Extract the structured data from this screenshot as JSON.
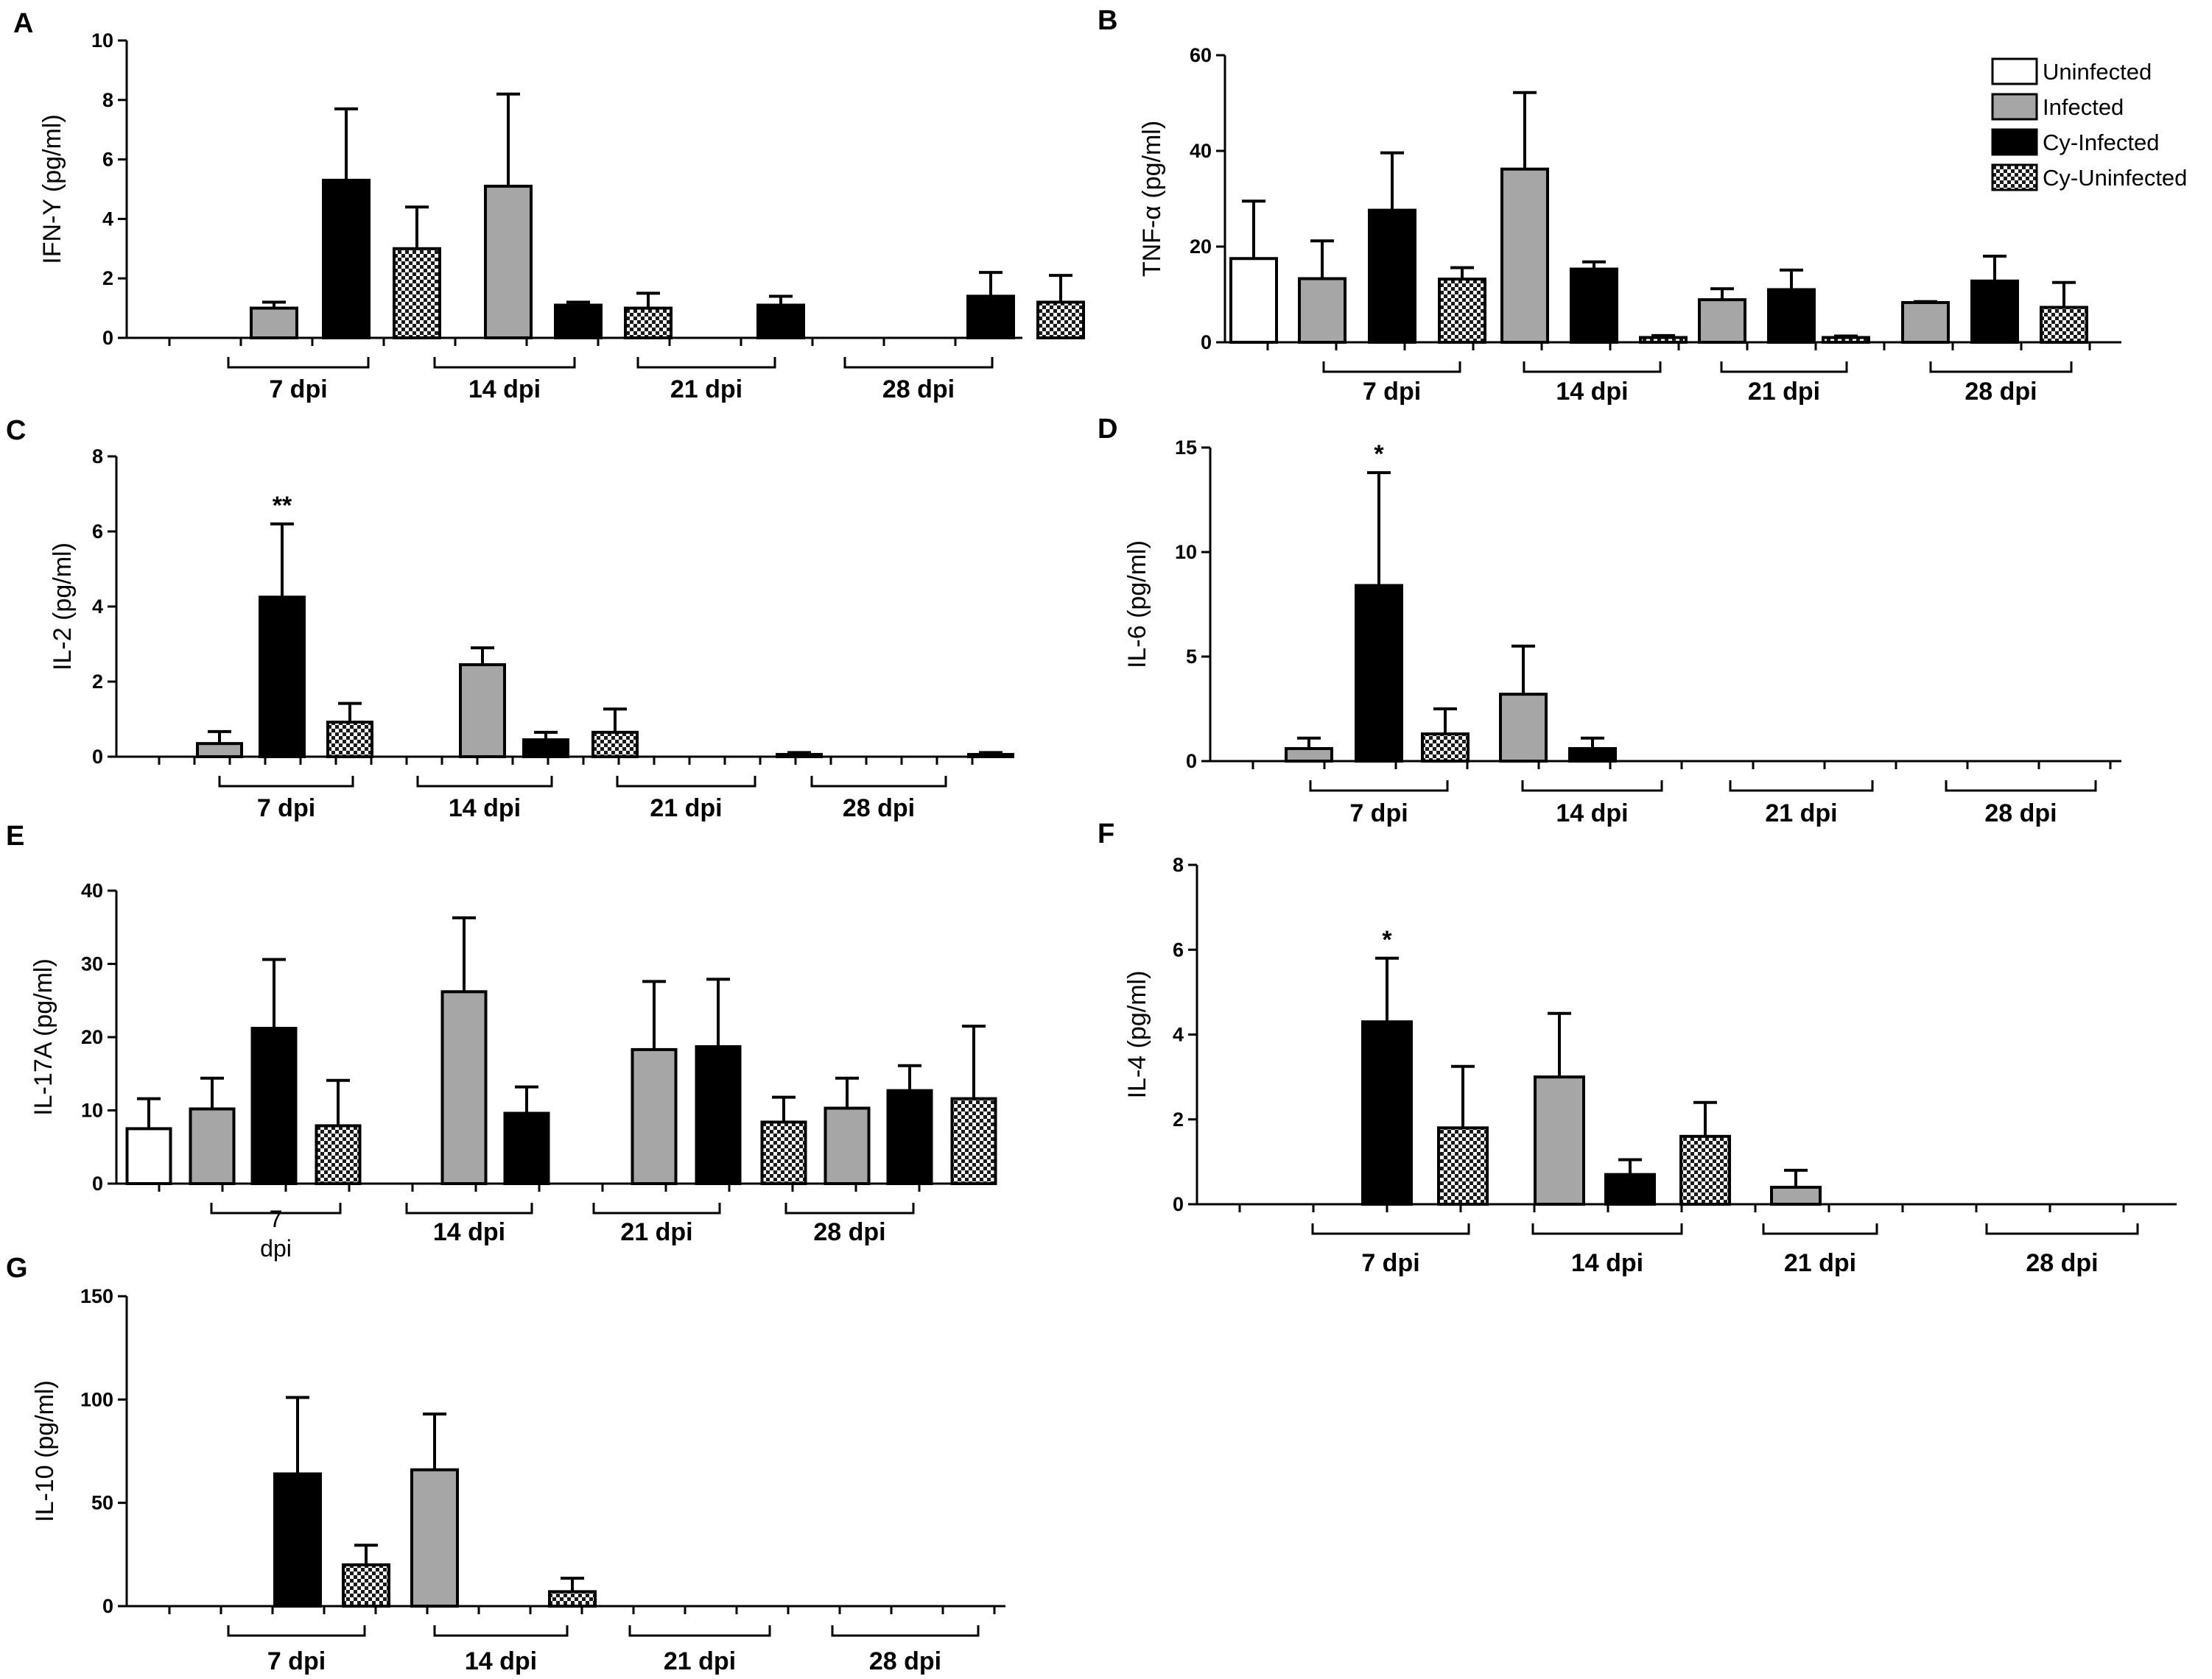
{
  "legend": [
    {
      "key": "uninfected",
      "label": "Uninfected"
    },
    {
      "key": "infected",
      "label": "Infected"
    },
    {
      "key": "cy_infected",
      "label": "Cy-Infected"
    },
    {
      "key": "cy_uninfected",
      "label": "Cy-Uninfected"
    }
  ],
  "series_colors": {
    "uninfected": "#ffffff",
    "infected": "#a6a6a6",
    "cy_infected": "#000000",
    "cy_uninfected": "#cfcfcf"
  },
  "chart_data": [
    {
      "panel": "A",
      "type": "bar",
      "ylabel": "IFN-Y (pg/ml)",
      "ylim": [
        0,
        10
      ],
      "yticks": [
        "0",
        "2",
        "4",
        "6",
        "8",
        "10"
      ],
      "groups": [
        "7 dpi",
        "14 dpi",
        "21 dpi",
        "28 dpi"
      ],
      "series": [
        {
          "name": "Uninfected",
          "values": [
            0,
            0,
            0,
            0
          ],
          "errors": [
            0,
            0,
            0,
            0
          ]
        },
        {
          "name": "Infected",
          "values": [
            1.0,
            5.1,
            0,
            0
          ],
          "errors": [
            0.2,
            3.1,
            0,
            0
          ]
        },
        {
          "name": "Cy-Infected",
          "values": [
            5.3,
            1.1,
            1.1,
            1.4
          ],
          "errors": [
            2.4,
            0.1,
            0.3,
            0.8
          ]
        },
        {
          "name": "Cy-Uninfected",
          "values": [
            3.0,
            1.0,
            0,
            1.2
          ],
          "errors": [
            1.4,
            0.5,
            0,
            0.9
          ]
        }
      ]
    },
    {
      "panel": "B",
      "type": "bar",
      "ylabel": "TNF-α (pg/ml)",
      "ylim": [
        0,
        60
      ],
      "yticks": [
        "0",
        "20",
        "40",
        "60"
      ],
      "groups": [
        "7 dpi",
        "14 dpi",
        "21 dpi",
        "28 dpi"
      ],
      "series": [
        {
          "name": "Uninfected",
          "values": [
            17.5,
            0,
            0,
            0
          ],
          "errors": [
            12,
            0,
            0,
            0
          ]
        },
        {
          "name": "Infected",
          "values": [
            13.3,
            36.2,
            8.9,
            8.3
          ],
          "errors": [
            7.9,
            16,
            2.3,
            0.2
          ]
        },
        {
          "name": "Cy-Infected",
          "values": [
            27.6,
            15.3,
            11,
            12.8
          ],
          "errors": [
            12,
            1.5,
            4.1,
            5.2
          ]
        },
        {
          "name": "Cy-Uninfected",
          "values": [
            13.2,
            1.0,
            1.0,
            7.3
          ],
          "errors": [
            2.4,
            0.4,
            0.3,
            5.2
          ]
        }
      ]
    },
    {
      "panel": "C",
      "type": "bar",
      "ylabel": "IL-2 (pg/ml)",
      "ylim": [
        0,
        8
      ],
      "yticks": [
        "0",
        "2",
        "4",
        "6",
        "8"
      ],
      "groups": [
        "7 dpi",
        "14 dpi",
        "21 dpi",
        "28 dpi"
      ],
      "annotations": [
        {
          "group": 0,
          "series": 2,
          "text": "**"
        }
      ],
      "series": [
        {
          "name": "Uninfected",
          "values": [
            0,
            0,
            0,
            0
          ],
          "errors": [
            0,
            0,
            0,
            0
          ]
        },
        {
          "name": "Infected",
          "values": [
            0.35,
            2.45,
            0,
            0
          ],
          "errors": [
            0.32,
            0.45,
            0,
            0
          ]
        },
        {
          "name": "Cy-Infected",
          "values": [
            4.25,
            0.45,
            0,
            0
          ],
          "errors": [
            1.95,
            0.2,
            0,
            0
          ]
        },
        {
          "name": "Cy-Uninfected",
          "values": [
            0.92,
            0.65,
            0.06,
            0.06
          ],
          "errors": [
            0.5,
            0.62,
            0.05,
            0.05
          ]
        }
      ]
    },
    {
      "panel": "D",
      "type": "bar",
      "ylabel": "IL-6 (pg/ml)",
      "ylim": [
        0,
        15
      ],
      "yticks": [
        "0",
        "5",
        "10",
        "15"
      ],
      "groups": [
        "7 dpi",
        "14 dpi",
        "21 dpi",
        "28 dpi"
      ],
      "annotations": [
        {
          "group": 0,
          "series": 2,
          "text": "*"
        }
      ],
      "series": [
        {
          "name": "Uninfected",
          "values": [
            0,
            0,
            0,
            0
          ],
          "errors": [
            0,
            0,
            0,
            0
          ]
        },
        {
          "name": "Infected",
          "values": [
            0.6,
            3.2,
            0,
            0
          ],
          "errors": [
            0.5,
            2.3,
            0,
            0
          ]
        },
        {
          "name": "Cy-Infected",
          "values": [
            8.4,
            0.6,
            0,
            0
          ],
          "errors": [
            5.4,
            0.5,
            0,
            0
          ]
        },
        {
          "name": "Cy-Uninfected",
          "values": [
            1.3,
            0,
            0,
            0
          ],
          "errors": [
            1.2,
            0,
            0,
            0
          ]
        }
      ]
    },
    {
      "panel": "E",
      "type": "bar",
      "ylabel": "IL-17A (pg/ml)",
      "ylim": [
        0,
        40
      ],
      "yticks": [
        "0",
        "10",
        "20",
        "30",
        "40"
      ],
      "groups": [
        "7\ndpi",
        "14 dpi",
        "21 dpi",
        "28 dpi"
      ],
      "series": [
        {
          "name": "Uninfected",
          "values": [
            7.5,
            0,
            0,
            0
          ],
          "errors": [
            4.1,
            0,
            0,
            0
          ]
        },
        {
          "name": "Infected",
          "values": [
            10.2,
            26.2,
            18.3,
            10.3
          ],
          "errors": [
            4.2,
            10.1,
            9.3,
            4.1
          ]
        },
        {
          "name": "Cy-Infected",
          "values": [
            21.2,
            9.6,
            18.7,
            12.7
          ],
          "errors": [
            9.4,
            3.6,
            9.2,
            3.4
          ]
        },
        {
          "name": "Cy-Uninfected",
          "values": [
            7.9,
            0,
            8.4,
            11.6
          ],
          "errors": [
            6.2,
            0,
            3.4,
            9.9
          ]
        }
      ]
    },
    {
      "panel": "F",
      "type": "bar",
      "ylabel": "IL-4 (pg/ml)",
      "ylim": [
        0,
        8
      ],
      "yticks": [
        "0",
        "2",
        "4",
        "6",
        "8"
      ],
      "groups": [
        "7 dpi",
        "14 dpi",
        "21 dpi",
        "28 dpi"
      ],
      "annotations": [
        {
          "group": 0,
          "series": 2,
          "text": "*"
        }
      ],
      "series": [
        {
          "name": "Uninfected",
          "values": [
            0,
            0,
            0,
            0
          ],
          "errors": [
            0,
            0,
            0,
            0
          ]
        },
        {
          "name": "Infected",
          "values": [
            0,
            3.0,
            0.4,
            0
          ],
          "errors": [
            0,
            1.5,
            0.4,
            0
          ]
        },
        {
          "name": "Cy-Infected",
          "values": [
            4.3,
            0.7,
            0,
            0
          ],
          "errors": [
            1.5,
            0.35,
            0,
            0
          ]
        },
        {
          "name": "Cy-Uninfected",
          "values": [
            1.8,
            1.6,
            0,
            0
          ],
          "errors": [
            1.45,
            0.8,
            0,
            0
          ]
        }
      ]
    },
    {
      "panel": "G",
      "type": "bar",
      "ylabel": "IL-10 (pg/ml)",
      "ylim": [
        0,
        150
      ],
      "yticks": [
        "0",
        "50",
        "100",
        "150"
      ],
      "groups": [
        "7 dpi",
        "14 dpi",
        "21 dpi",
        "28 dpi"
      ],
      "series": [
        {
          "name": "Uninfected",
          "values": [
            0,
            0,
            0,
            0
          ],
          "errors": [
            0,
            0,
            0,
            0
          ]
        },
        {
          "name": "Infected",
          "values": [
            0,
            66,
            0,
            0
          ],
          "errors": [
            0,
            27,
            0,
            0
          ]
        },
        {
          "name": "Cy-Infected",
          "values": [
            64,
            0,
            0,
            0
          ],
          "errors": [
            37,
            0,
            0,
            0
          ]
        },
        {
          "name": "Cy-Uninfected",
          "values": [
            20,
            7,
            0,
            0
          ],
          "errors": [
            9.5,
            6.5,
            0,
            0
          ]
        }
      ]
    }
  ]
}
